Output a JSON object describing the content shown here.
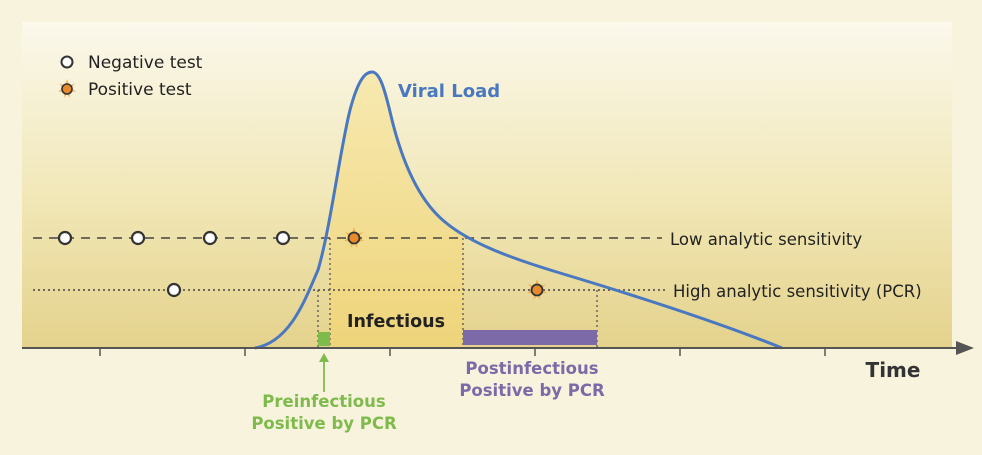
{
  "legend": {
    "negative_label": "Negative test",
    "positive_label": "Positive test"
  },
  "curve_label": "Viral Load",
  "thresholds": {
    "low_label": "Low analytic sensitivity",
    "high_label": "High analytic sensitivity (PCR)"
  },
  "regions": {
    "infectious_label": "Infectious",
    "preinfectious_line1": "Preinfectious",
    "preinfectious_line2": "Positive by PCR",
    "postinfectious_line1": "Postinfectious",
    "postinfectious_line2": "Positive by PCR"
  },
  "axis": {
    "x_label": "Time"
  },
  "colors": {
    "curve": "#4a78c0",
    "infectious_fill": "#f3dc8e",
    "background_top": "#fbf8ec",
    "background_bottom": "#e6d58e",
    "preinfectious": "#7fba4c",
    "postinfectious": "#7c6aa8",
    "positive_marker": "#e8892e",
    "axis": "#555555"
  }
}
